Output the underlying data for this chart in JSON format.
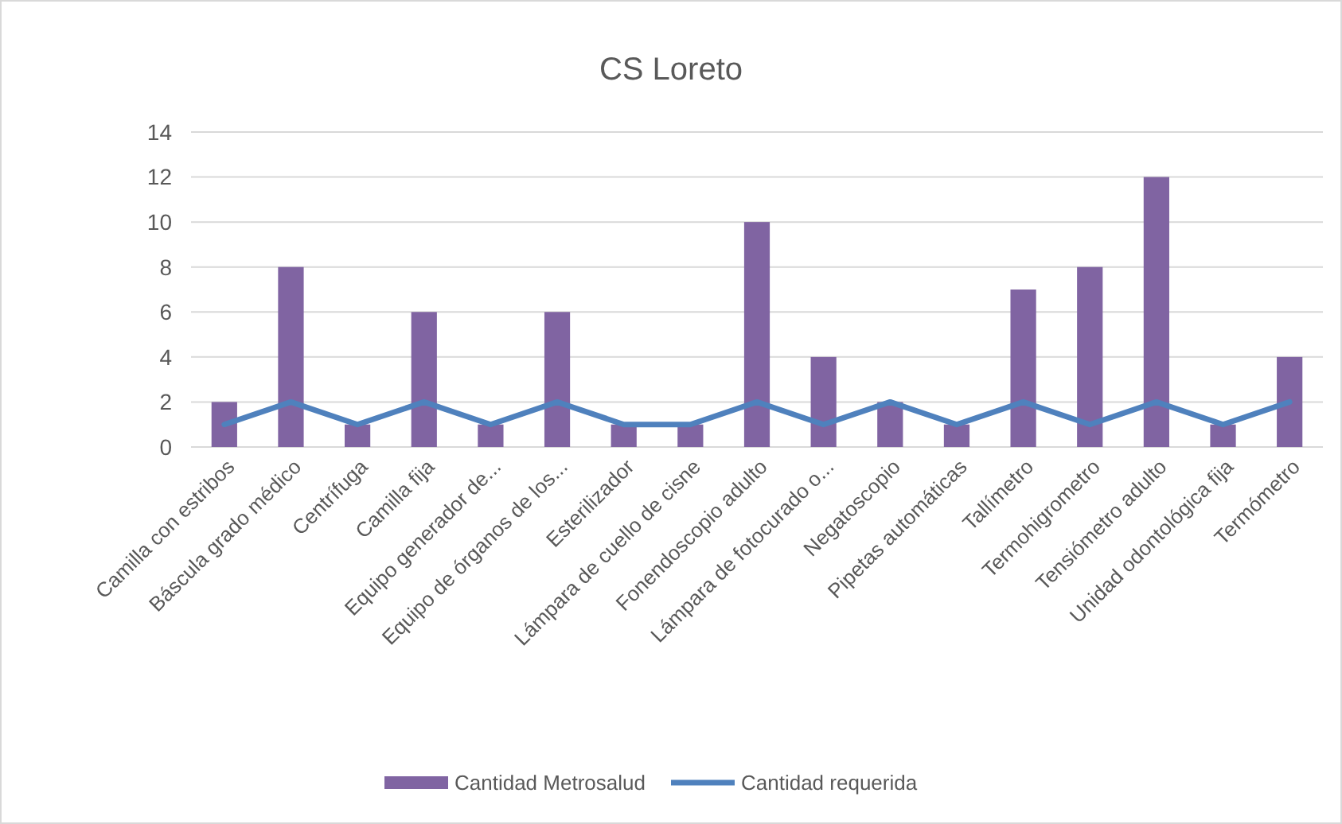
{
  "chart_data": {
    "type": "bar",
    "title": "CS Loreto",
    "categories": [
      "Camilla con estribos",
      "Báscula grado médico",
      "Centrífuga",
      "Camilla fija",
      "Equipo generador de...",
      "Equipo de órganos de los...",
      "Esterilizador",
      "Lámpara de cuello de cisne",
      "Fonendoscopio adulto",
      "Lámpara de fotocurado o...",
      "Negatoscopio",
      "Pipetas automáticas",
      "Tallímetro",
      "Termohigrometro",
      "Tensiómetro adulto",
      "Unidad odontológica fija",
      "Termómetro"
    ],
    "series": [
      {
        "name": "Cantidad Metrosalud",
        "color": "#8064a2",
        "values": [
          2,
          8,
          1,
          6,
          1,
          6,
          1,
          1,
          10,
          4,
          2,
          1,
          7,
          8,
          12,
          1,
          4
        ]
      },
      {
        "name": "Cantidad requerida",
        "type": "line",
        "color": "#4f81bd",
        "values": [
          1,
          2,
          1,
          2,
          1,
          2,
          1,
          1,
          2,
          1,
          2,
          1,
          2,
          1,
          2,
          1,
          2
        ]
      }
    ],
    "ylim": [
      0,
      14
    ],
    "yticks": [
      0,
      2,
      4,
      6,
      8,
      10,
      12,
      14
    ],
    "grid": "y",
    "legend": "bottom"
  }
}
